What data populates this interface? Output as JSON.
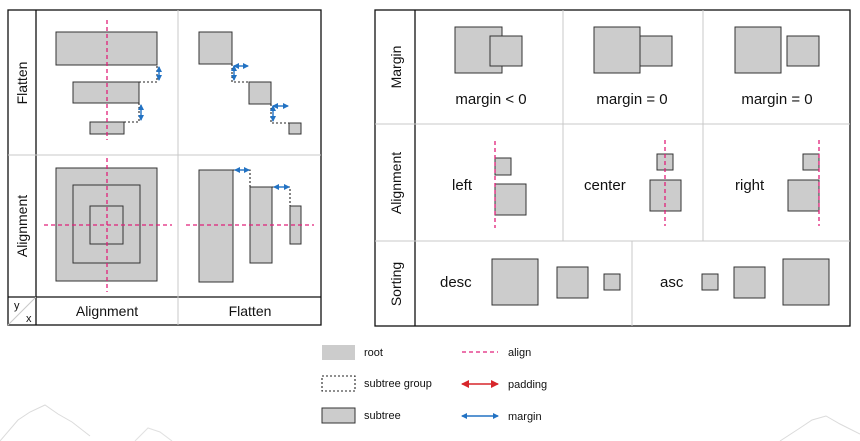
{
  "left_panel": {
    "row_labels": [
      "Flatten",
      "Alignment"
    ],
    "col_labels": [
      "Alignment",
      "Flatten"
    ],
    "corner": {
      "y": "y",
      "x": "x"
    }
  },
  "right_panel": {
    "row_labels": [
      "Margin",
      "Alignment",
      "Sorting"
    ],
    "margin_captions": [
      "margin < 0",
      "margin = 0",
      "margin = 0"
    ],
    "alignment_captions": [
      "left",
      "center",
      "right"
    ],
    "sorting_captions": [
      "desc",
      "asc"
    ]
  },
  "legend": {
    "root": "root",
    "subtree_group": "subtree group",
    "subtree": "subtree",
    "align": "align",
    "padding": "padding",
    "margin": "margin"
  },
  "colors": {
    "align": "#e0207a",
    "padding": "#d7262b",
    "margin": "#2272c3",
    "box_fill": "#cccccc"
  }
}
